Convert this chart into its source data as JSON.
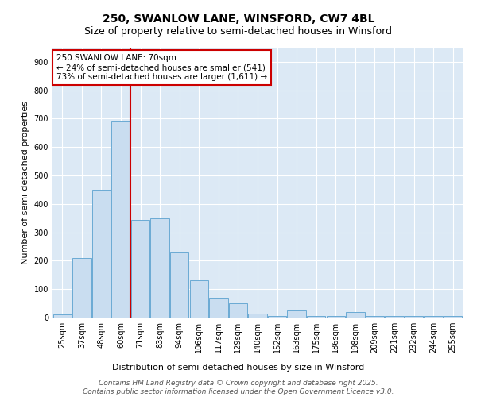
{
  "title_line1": "250, SWANLOW LANE, WINSFORD, CW7 4BL",
  "title_line2": "Size of property relative to semi-detached houses in Winsford",
  "xlabel": "Distribution of semi-detached houses by size in Winsford",
  "ylabel": "Number of semi-detached properties",
  "bins": [
    "25sqm",
    "37sqm",
    "48sqm",
    "60sqm",
    "71sqm",
    "83sqm",
    "94sqm",
    "106sqm",
    "117sqm",
    "129sqm",
    "140sqm",
    "152sqm",
    "163sqm",
    "175sqm",
    "186sqm",
    "198sqm",
    "209sqm",
    "221sqm",
    "232sqm",
    "244sqm",
    "255sqm"
  ],
  "values": [
    10,
    210,
    450,
    690,
    345,
    350,
    230,
    130,
    70,
    50,
    15,
    5,
    25,
    5,
    5,
    20,
    5,
    5,
    5,
    5,
    5
  ],
  "bar_color": "#c9ddf0",
  "bar_edge_color": "#6aaad4",
  "vline_color": "#cc0000",
  "vline_x": 3.5,
  "annotation_text": "250 SWANLOW LANE: 70sqm\n← 24% of semi-detached houses are smaller (541)\n73% of semi-detached houses are larger (1,611) →",
  "annotation_box_facecolor": "white",
  "annotation_box_edgecolor": "#cc0000",
  "ylim": [
    0,
    950
  ],
  "yticks": [
    0,
    100,
    200,
    300,
    400,
    500,
    600,
    700,
    800,
    900
  ],
  "plot_bg_color": "#dce9f5",
  "grid_color": "white",
  "footer_line1": "Contains HM Land Registry data © Crown copyright and database right 2025.",
  "footer_line2": "Contains public sector information licensed under the Open Government Licence v3.0.",
  "title1_fontsize": 10,
  "title2_fontsize": 9,
  "axis_label_fontsize": 8,
  "tick_fontsize": 7,
  "annotation_fontsize": 7.5,
  "footer_fontsize": 6.5
}
